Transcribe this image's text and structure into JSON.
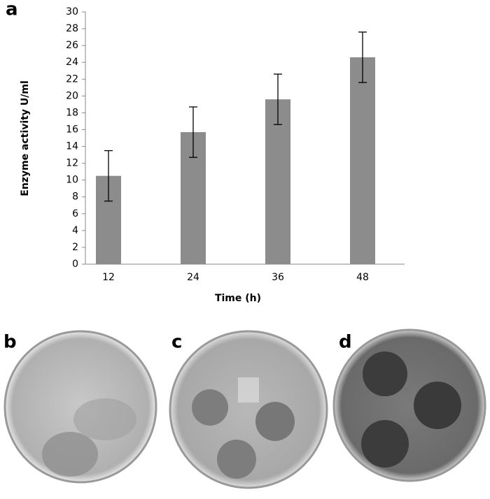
{
  "chart_data": {
    "type": "bar",
    "panel_label": "a",
    "y_label": "Enzyme activity U/ml",
    "x_label": "Time (h)",
    "categories": [
      "12",
      "24",
      "36",
      "48"
    ],
    "values": [
      10.5,
      15.7,
      19.6,
      24.6
    ],
    "errors": [
      3,
      3,
      3,
      3
    ],
    "color": "#8c8c8c",
    "ylim": [
      0,
      30
    ],
    "yticks": [
      0,
      2,
      4,
      6,
      8,
      10,
      12,
      14,
      16,
      18,
      20,
      22,
      24,
      26,
      28,
      30
    ]
  },
  "photos": [
    {
      "label": "b"
    },
    {
      "label": "c"
    },
    {
      "label": "d"
    }
  ]
}
